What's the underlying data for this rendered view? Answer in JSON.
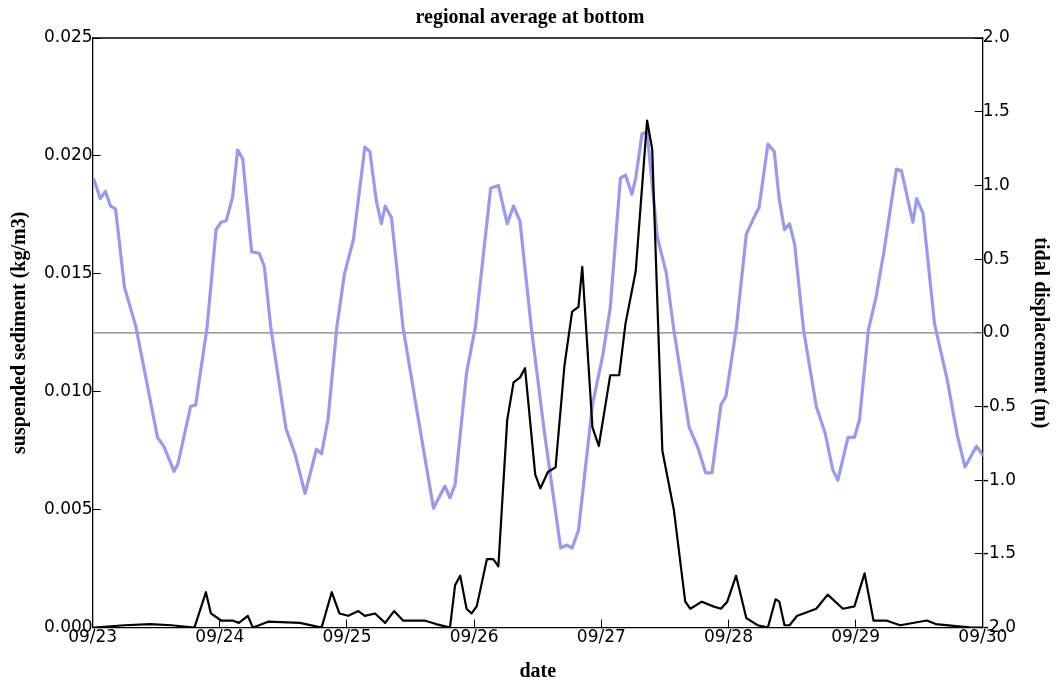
{
  "chart_data": {
    "type": "line",
    "title": "regional average at bottom",
    "xlabel": "date",
    "ylabel": "suspended sediment (kg/m3)",
    "y2label": "tidal displacement (m)",
    "xlim": [
      "--09-23",
      "--09-30"
    ],
    "xticks": [
      {
        "value": "--09-23",
        "label": "09/23"
      },
      {
        "value": "--09-24",
        "label": "09/24"
      },
      {
        "value": "--09-25",
        "label": "09/25"
      },
      {
        "value": "--09-26",
        "label": "09/26"
      },
      {
        "value": "--09-27",
        "label": "09/27"
      },
      {
        "value": "--09-28",
        "label": "09/28"
      },
      {
        "value": "--09-29",
        "label": "09/29"
      },
      {
        "value": "--09-30",
        "label": "09/30"
      }
    ],
    "ylim": [
      0,
      0.025
    ],
    "yticks": [
      {
        "value": 0,
        "label": "0.000"
      },
      {
        "value": 0.005,
        "label": "0.005"
      },
      {
        "value": 0.01,
        "label": "0.010"
      },
      {
        "value": 0.015,
        "label": "0.015"
      },
      {
        "value": 0.02,
        "label": "0.020"
      },
      {
        "value": 0.025,
        "label": "0.025"
      }
    ],
    "y2lim": [
      -2,
      2
    ],
    "y2ticks": [
      {
        "value": -2,
        "label": "-2.0"
      },
      {
        "value": -1.5,
        "label": "-1.5"
      },
      {
        "value": -1,
        "label": "-1.0"
      },
      {
        "value": -0.5,
        "label": "-0.5"
      },
      {
        "value": 0,
        "label": "0.0"
      },
      {
        "value": 0.5,
        "label": "0.5"
      },
      {
        "value": 1,
        "label": "1.0"
      },
      {
        "value": 1.5,
        "label": "1.5"
      },
      {
        "value": 2,
        "label": "2.0"
      }
    ],
    "grid": false,
    "legend": false,
    "marker": "none",
    "line_style": "solid",
    "ref_lines": [
      {
        "axis": "y2",
        "value": 0,
        "color": "#808080"
      }
    ],
    "series": [
      {
        "color": "#9999ee",
        "axis": "y2",
        "x": [
          "--09-23T00:14",
          "--09-23T01:26",
          "--09-23T02:24",
          "--09-23T03:22",
          "--09-23T04:19",
          "--09-23T06:00",
          "--09-23T08:10",
          "--09-23T12:14",
          "--09-23T13:26",
          "--09-23T15:22",
          "--09-23T16:05",
          "--09-23T18:29",
          "--09-23T19:26",
          "--09-23T21:36",
          "--09-23T23:17",
          "--09-24T00:14",
          "--09-24T01:12",
          "--09-24T02:24",
          "--09-24T03:22",
          "--09-24T04:19",
          "--09-24T06:00",
          "--09-24T07:26",
          "--09-24T08:24",
          "--09-24T09:36",
          "--09-24T12:29",
          "--09-24T14:10",
          "--09-24T16:05",
          "--09-24T18:14",
          "--09-24T19:12",
          "--09-24T20:24",
          "--09-24T22:05",
          "--09-24T23:31",
          "--09-25T01:12",
          "--09-25T03:22",
          "--09-25T04:19",
          "--09-25T05:31",
          "--09-25T06:29",
          "--09-25T07:12",
          "--09-25T08:24",
          "--09-25T10:34",
          "--09-25T12:58",
          "--09-25T16:19",
          "--09-25T18:29",
          "--09-25T19:26",
          "--09-25T20:24",
          "--09-25T22:34",
          "--09-26T00:14",
          "--09-26T03:07",
          "--09-26T04:34",
          "--09-26T06:14",
          "--09-26T07:26",
          "--09-26T08:38",
          "--09-26T10:48",
          "--09-26T13:12",
          "--09-26T16:19",
          "--09-26T17:31",
          "--09-26T18:29",
          "--09-26T19:41",
          "--09-26T22:19",
          "--09-27T00:14",
          "--09-27T01:41",
          "--09-27T03:36",
          "--09-27T04:34",
          "--09-27T05:46",
          "--09-27T06:29",
          "--09-27T07:41",
          "--09-27T08:38",
          "--09-27T10:34",
          "--09-27T12:14",
          "--09-27T13:41",
          "--09-27T16:34",
          "--09-27T18:14",
          "--09-27T19:41",
          "--09-27T20:53",
          "--09-27T22:34",
          "--09-27T23:31",
          "--09-28T01:26",
          "--09-28T03:22",
          "--09-28T05:02",
          "--09-28T05:46",
          "--09-28T07:26",
          "--09-28T08:38",
          "--09-28T09:36",
          "--09-28T10:34",
          "--09-28T11:31",
          "--09-28T12:29",
          "--09-28T14:10",
          "--09-28T16:34",
          "--09-28T18:14",
          "--09-28T19:41",
          "--09-28T20:38",
          "--09-28T22:34",
          "--09-28T23:46",
          "--09-29T00:43",
          "--09-29T02:24",
          "--09-29T03:50",
          "--09-29T05:17",
          "--09-29T07:41",
          "--09-29T08:38",
          "--09-29T10:48",
          "--09-29T11:31",
          "--09-29T12:43",
          "--09-29T14:53",
          "--09-29T17:17",
          "--09-29T19:12",
          "--09-29T20:38",
          "--09-29T22:48",
          "--09-30T00:00"
        ],
        "values": [
          1.04,
          0.91,
          0.96,
          0.86,
          0.84,
          0.31,
          0.04,
          -0.71,
          -0.77,
          -0.94,
          -0.89,
          -0.5,
          -0.49,
          0.04,
          0.7,
          0.75,
          0.76,
          0.92,
          1.24,
          1.18,
          0.55,
          0.54,
          0.45,
          0.04,
          -0.65,
          -0.82,
          -1.09,
          -0.79,
          -0.82,
          -0.59,
          0.04,
          0.4,
          0.63,
          1.26,
          1.23,
          0.9,
          0.74,
          0.86,
          0.78,
          0.04,
          -0.48,
          -1.19,
          -1.04,
          -1.12,
          -1.03,
          -0.27,
          0.04,
          0.98,
          1.0,
          0.74,
          0.86,
          0.76,
          0.03,
          -0.66,
          -1.46,
          -1.44,
          -1.46,
          -1.34,
          -0.49,
          -0.16,
          0.17,
          1.05,
          1.07,
          0.94,
          1.05,
          1.35,
          1.36,
          0.65,
          0.41,
          0.02,
          -0.64,
          -0.78,
          -0.95,
          -0.95,
          -0.49,
          -0.43,
          0.02,
          0.67,
          0.8,
          0.85,
          1.28,
          1.23,
          0.9,
          0.7,
          0.74,
          0.6,
          0.02,
          -0.5,
          -0.68,
          -0.93,
          -1.0,
          -0.71,
          -0.71,
          -0.59,
          0.02,
          0.24,
          0.54,
          1.11,
          1.1,
          0.75,
          0.91,
          0.81,
          0.06,
          -0.32,
          -0.7,
          -0.91,
          -0.77,
          -0.83
        ]
      },
      {
        "color": "#000000",
        "x": [
          "--09-23T00:14",
          "--09-23T06:00",
          "--09-23T10:48",
          "--09-23T14:53",
          "--09-23T19:12",
          "--09-23T21:22",
          "--09-23T22:19",
          "--09-24T00:14",
          "--09-24T02:24",
          "--09-24T03:36",
          "--09-24T05:17",
          "--09-24T06:14",
          "--09-24T09:07",
          "--09-24T15:07",
          "--09-24T19:12",
          "--09-24T21:07",
          "--09-24T22:34",
          "--09-25T00:14",
          "--09-25T02:10",
          "--09-25T03:22",
          "--09-25T05:17",
          "--09-25T07:12",
          "--09-25T08:53",
          "--09-25T10:34",
          "--09-25T14:38",
          "--09-25T16:48",
          "--09-25T19:26",
          "--09-25T20:24",
          "--09-25T21:22",
          "--09-25T22:34",
          "--09-25T23:31",
          "--09-26T00:29",
          "--09-26T02:24",
          "--09-26T03:36",
          "--09-26T04:34",
          "--09-26T06:14",
          "--09-26T07:26",
          "--09-26T08:38",
          "--09-26T09:36",
          "--09-26T11:31",
          "--09-26T12:29",
          "--09-26T13:55",
          "--09-26T15:22",
          "--09-26T17:02",
          "--09-26T18:29",
          "--09-26T19:41",
          "--09-26T20:24",
          "--09-26T22:19",
          "--09-26T23:31",
          "--09-27T01:41",
          "--09-27T03:22",
          "--09-27T04:34",
          "--09-27T06:29",
          "--09-27T08:38",
          "--09-27T09:36",
          "--09-27T11:31",
          "--09-27T13:41",
          "--09-27T15:50",
          "--09-27T16:48",
          "--09-27T18:58",
          "--09-27T21:07",
          "--09-27T22:34",
          "--09-27T23:46",
          "--09-28T01:26",
          "--09-28T03:22",
          "--09-28T05:31",
          "--09-28T07:26",
          "--09-28T08:53",
          "--09-28T09:36",
          "--09-28T10:34",
          "--09-28T11:31",
          "--09-28T12:58",
          "--09-28T14:10",
          "--09-28T16:34",
          "--09-28T18:43",
          "--09-28T21:36",
          "--09-28T23:46",
          "--09-29T01:41",
          "--09-29T03:22",
          "--09-29T05:46",
          "--09-29T08:24",
          "--09-29T13:26",
          "--09-29T15:07",
          "--09-29T21:50",
          "--09-30T00:00"
        ],
        "values": [
          0,
          0.0001,
          0.00015,
          0.0001,
          0,
          0.0015,
          0.0006,
          0.0003,
          0.0003,
          0.0002,
          0.0005,
          0,
          0.00025,
          0.0002,
          0,
          0.0015,
          0.0006,
          0.0005,
          0.0007,
          0.0005,
          0.0006,
          0.0002,
          0.0007,
          0.0003,
          0.0003,
          0.00015,
          0,
          0.0018,
          0.0022,
          0.0008,
          0.0006,
          0.0009,
          0.0029,
          0.0029,
          0.0026,
          0.0088,
          0.0104,
          0.0106,
          0.011,
          0.0065,
          0.0059,
          0.0066,
          0.0068,
          0.0111,
          0.0134,
          0.0136,
          0.0153,
          0.0085,
          0.0077,
          0.0107,
          0.0107,
          0.0129,
          0.0151,
          0.0215,
          0.0203,
          0.0075,
          0.005,
          0.0011,
          0.0008,
          0.0011,
          0.0009,
          0.0008,
          0.0011,
          0.0022,
          0.0004,
          0.0001,
          0,
          0.0012,
          0.0011,
          0.0001,
          0.0001,
          0.0005,
          0.0006,
          0.0008,
          0.0014,
          0.0008,
          0.0009,
          0.0023,
          0.0003,
          0.0003,
          0.0001,
          0.0003,
          0.00015,
          0,
          0
        ]
      }
    ]
  }
}
